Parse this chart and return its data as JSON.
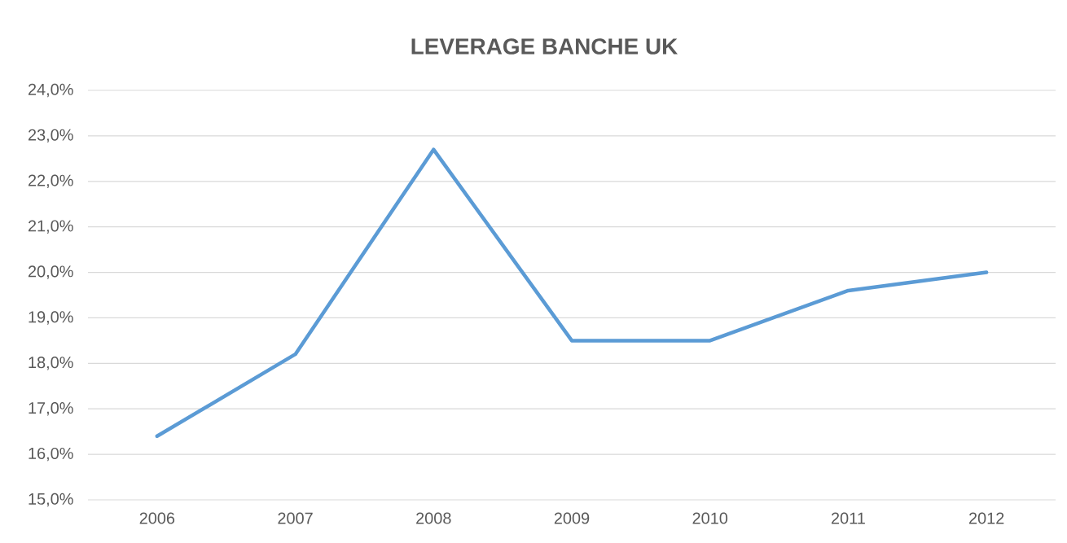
{
  "chart_data": {
    "type": "line",
    "title": "LEVERAGE BANCHE UK",
    "categories": [
      "2006",
      "2007",
      "2008",
      "2009",
      "2010",
      "2011",
      "2012"
    ],
    "series": [
      {
        "color": "#5b9bd5",
        "values": [
          16.4,
          18.2,
          22.7,
          18.5,
          18.5,
          19.6,
          20.0
        ]
      }
    ],
    "ylim": [
      15,
      24
    ],
    "yticks": [
      {
        "value": 15,
        "label": "15,0%"
      },
      {
        "value": 16,
        "label": "16,0%"
      },
      {
        "value": 17,
        "label": "17,0%"
      },
      {
        "value": 18,
        "label": "18,0%"
      },
      {
        "value": 19,
        "label": "19,0%"
      },
      {
        "value": 20,
        "label": "20,0%"
      },
      {
        "value": 21,
        "label": "21,0%"
      },
      {
        "value": 22,
        "label": "22,0%"
      },
      {
        "value": 23,
        "label": "23,0%"
      },
      {
        "value": 24,
        "label": "24,0%"
      }
    ],
    "grid": "y",
    "legend": false,
    "marker": "none",
    "line_style": "solid"
  }
}
